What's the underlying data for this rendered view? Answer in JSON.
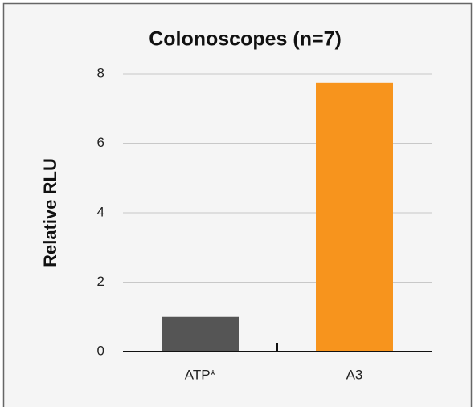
{
  "chart_data": {
    "type": "bar",
    "title": "Colonoscopes (n=7)",
    "y_label": "Relative RLU",
    "categories": [
      "ATP*",
      "A3"
    ],
    "values": [
      1.0,
      7.75
    ],
    "colors": [
      "#555555",
      "#f7941d"
    ],
    "ylim": [
      0,
      8
    ],
    "yticks": [
      0,
      2,
      4,
      6,
      8
    ],
    "grid": true
  }
}
